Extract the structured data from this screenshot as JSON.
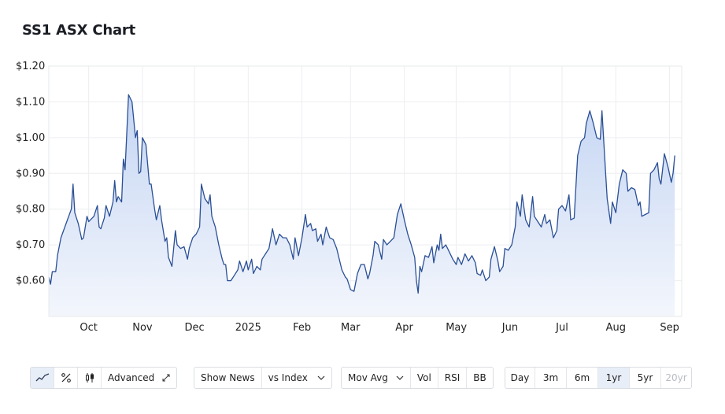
{
  "title": "SS1 ASX Chart",
  "chart_data": {
    "type": "area",
    "title": "SS1 ASX Chart",
    "ylim": [
      0.5,
      1.2
    ],
    "y_ticks": [
      {
        "value": 0.6,
        "label": "$0.60"
      },
      {
        "value": 0.7,
        "label": "$0.70"
      },
      {
        "value": 0.8,
        "label": "$0.80"
      },
      {
        "value": 0.9,
        "label": "$0.90"
      },
      {
        "value": 1.0,
        "label": "$1.00"
      },
      {
        "value": 1.1,
        "label": "$1.10"
      },
      {
        "value": 1.2,
        "label": "$1.20"
      }
    ],
    "x_ticks": [
      {
        "label": "Oct",
        "date": "2024-10-01"
      },
      {
        "label": "Nov",
        "date": "2024-11-01"
      },
      {
        "label": "Dec",
        "date": "2024-12-01"
      },
      {
        "label": "2025",
        "date": "2025-01-01"
      },
      {
        "label": "Feb",
        "date": "2025-02-01"
      },
      {
        "label": "Mar",
        "date": "2025-03-01"
      },
      {
        "label": "Apr",
        "date": "2025-04-01"
      },
      {
        "label": "May",
        "date": "2025-05-01"
      },
      {
        "label": "Jun",
        "date": "2025-06-01"
      },
      {
        "label": "Jul",
        "date": "2025-07-01"
      },
      {
        "label": "Aug",
        "date": "2025-08-01"
      },
      {
        "label": "Sep",
        "date": "2025-09-01"
      }
    ],
    "xlim": [
      "2024-09-08",
      "2025-09-08"
    ],
    "grid": true,
    "line_color": "#2a4f96",
    "fill_top_color": "#c4d5f3",
    "fill_bottom_color": "#f3f6fc",
    "series": [
      {
        "points": [
          [
            "2024-09-08",
            0.61
          ],
          [
            "2024-09-09",
            0.59
          ],
          [
            "2024-09-10",
            0.625
          ],
          [
            "2024-09-12",
            0.625
          ],
          [
            "2024-09-13",
            0.67
          ],
          [
            "2024-09-15",
            0.72
          ],
          [
            "2024-09-18",
            0.76
          ],
          [
            "2024-09-21",
            0.8
          ],
          [
            "2024-09-22",
            0.87
          ],
          [
            "2024-09-23",
            0.79
          ],
          [
            "2024-09-25",
            0.76
          ],
          [
            "2024-09-27",
            0.715
          ],
          [
            "2024-09-28",
            0.72
          ],
          [
            "2024-09-30",
            0.78
          ],
          [
            "2024-10-01",
            0.765
          ],
          [
            "2024-10-03",
            0.775
          ],
          [
            "2024-10-04",
            0.78
          ],
          [
            "2024-10-06",
            0.81
          ],
          [
            "2024-10-07",
            0.75
          ],
          [
            "2024-10-08",
            0.745
          ],
          [
            "2024-10-10",
            0.775
          ],
          [
            "2024-10-11",
            0.81
          ],
          [
            "2024-10-13",
            0.78
          ],
          [
            "2024-10-15",
            0.82
          ],
          [
            "2024-10-16",
            0.88
          ],
          [
            "2024-10-17",
            0.82
          ],
          [
            "2024-10-18",
            0.835
          ],
          [
            "2024-10-20",
            0.82
          ],
          [
            "2024-10-21",
            0.94
          ],
          [
            "2024-10-22",
            0.91
          ],
          [
            "2024-10-24",
            1.12
          ],
          [
            "2024-10-25",
            1.11
          ],
          [
            "2024-10-26",
            1.1
          ],
          [
            "2024-10-28",
            1.0
          ],
          [
            "2024-10-29",
            1.02
          ],
          [
            "2024-10-30",
            0.9
          ],
          [
            "2024-10-31",
            0.905
          ],
          [
            "2024-11-01",
            1.0
          ],
          [
            "2024-11-03",
            0.98
          ],
          [
            "2024-11-05",
            0.87
          ],
          [
            "2024-11-06",
            0.87
          ],
          [
            "2024-11-08",
            0.8
          ],
          [
            "2024-11-09",
            0.77
          ],
          [
            "2024-11-11",
            0.81
          ],
          [
            "2024-11-12",
            0.77
          ],
          [
            "2024-11-14",
            0.71
          ],
          [
            "2024-11-15",
            0.72
          ],
          [
            "2024-11-16",
            0.665
          ],
          [
            "2024-11-18",
            0.64
          ],
          [
            "2024-11-20",
            0.74
          ],
          [
            "2024-11-21",
            0.7
          ],
          [
            "2024-11-23",
            0.69
          ],
          [
            "2024-11-25",
            0.695
          ],
          [
            "2024-11-27",
            0.66
          ],
          [
            "2024-11-28",
            0.69
          ],
          [
            "2024-11-30",
            0.72
          ],
          [
            "2024-12-02",
            0.73
          ],
          [
            "2024-12-04",
            0.75
          ],
          [
            "2024-12-05",
            0.87
          ],
          [
            "2024-12-07",
            0.83
          ],
          [
            "2024-12-09",
            0.815
          ],
          [
            "2024-12-10",
            0.84
          ],
          [
            "2024-12-11",
            0.78
          ],
          [
            "2024-12-13",
            0.75
          ],
          [
            "2024-12-15",
            0.7
          ],
          [
            "2024-12-17",
            0.66
          ],
          [
            "2024-12-18",
            0.645
          ],
          [
            "2024-12-19",
            0.645
          ],
          [
            "2024-12-20",
            0.6
          ],
          [
            "2024-12-22",
            0.6
          ],
          [
            "2024-12-24",
            0.615
          ],
          [
            "2024-12-26",
            0.63
          ],
          [
            "2024-12-27",
            0.655
          ],
          [
            "2024-12-29",
            0.625
          ],
          [
            "2024-12-31",
            0.655
          ],
          [
            "2025-01-01",
            0.63
          ],
          [
            "2025-01-03",
            0.66
          ],
          [
            "2025-01-04",
            0.62
          ],
          [
            "2025-01-06",
            0.64
          ],
          [
            "2025-01-08",
            0.63
          ],
          [
            "2025-01-09",
            0.66
          ],
          [
            "2025-01-11",
            0.675
          ],
          [
            "2025-01-13",
            0.69
          ],
          [
            "2025-01-15",
            0.745
          ],
          [
            "2025-01-17",
            0.7
          ],
          [
            "2025-01-19",
            0.73
          ],
          [
            "2025-01-21",
            0.72
          ],
          [
            "2025-01-23",
            0.72
          ],
          [
            "2025-01-25",
            0.7
          ],
          [
            "2025-01-27",
            0.66
          ],
          [
            "2025-01-28",
            0.72
          ],
          [
            "2025-01-30",
            0.67
          ],
          [
            "2025-02-01",
            0.72
          ],
          [
            "2025-02-03",
            0.785
          ],
          [
            "2025-02-04",
            0.75
          ],
          [
            "2025-02-06",
            0.76
          ],
          [
            "2025-02-07",
            0.74
          ],
          [
            "2025-02-09",
            0.745
          ],
          [
            "2025-02-10",
            0.71
          ],
          [
            "2025-02-12",
            0.73
          ],
          [
            "2025-02-13",
            0.7
          ],
          [
            "2025-02-15",
            0.75
          ],
          [
            "2025-02-17",
            0.72
          ],
          [
            "2025-02-19",
            0.715
          ],
          [
            "2025-02-21",
            0.69
          ],
          [
            "2025-02-23",
            0.65
          ],
          [
            "2025-02-24",
            0.63
          ],
          [
            "2025-02-26",
            0.61
          ],
          [
            "2025-02-27",
            0.605
          ],
          [
            "2025-03-01",
            0.575
          ],
          [
            "2025-03-03",
            0.57
          ],
          [
            "2025-03-05",
            0.62
          ],
          [
            "2025-03-07",
            0.645
          ],
          [
            "2025-03-09",
            0.645
          ],
          [
            "2025-03-11",
            0.605
          ],
          [
            "2025-03-12",
            0.62
          ],
          [
            "2025-03-14",
            0.67
          ],
          [
            "2025-03-15",
            0.71
          ],
          [
            "2025-03-17",
            0.7
          ],
          [
            "2025-03-19",
            0.66
          ],
          [
            "2025-03-20",
            0.715
          ],
          [
            "2025-03-22",
            0.7
          ],
          [
            "2025-03-24",
            0.71
          ],
          [
            "2025-03-26",
            0.72
          ],
          [
            "2025-03-28",
            0.785
          ],
          [
            "2025-03-30",
            0.815
          ],
          [
            "2025-04-01",
            0.77
          ],
          [
            "2025-04-03",
            0.73
          ],
          [
            "2025-04-05",
            0.7
          ],
          [
            "2025-04-07",
            0.665
          ],
          [
            "2025-04-08",
            0.6
          ],
          [
            "2025-04-09",
            0.565
          ],
          [
            "2025-04-10",
            0.64
          ],
          [
            "2025-04-11",
            0.625
          ],
          [
            "2025-04-13",
            0.67
          ],
          [
            "2025-04-15",
            0.665
          ],
          [
            "2025-04-17",
            0.695
          ],
          [
            "2025-04-18",
            0.65
          ],
          [
            "2025-04-20",
            0.7
          ],
          [
            "2025-04-21",
            0.685
          ],
          [
            "2025-04-22",
            0.73
          ],
          [
            "2025-04-23",
            0.69
          ],
          [
            "2025-04-25",
            0.7
          ],
          [
            "2025-04-27",
            0.68
          ],
          [
            "2025-04-29",
            0.66
          ],
          [
            "2025-05-01",
            0.645
          ],
          [
            "2025-05-02",
            0.665
          ],
          [
            "2025-05-04",
            0.645
          ],
          [
            "2025-05-06",
            0.675
          ],
          [
            "2025-05-08",
            0.655
          ],
          [
            "2025-05-10",
            0.67
          ],
          [
            "2025-05-12",
            0.65
          ],
          [
            "2025-05-13",
            0.62
          ],
          [
            "2025-05-15",
            0.615
          ],
          [
            "2025-05-16",
            0.63
          ],
          [
            "2025-05-18",
            0.6
          ],
          [
            "2025-05-20",
            0.61
          ],
          [
            "2025-05-21",
            0.66
          ],
          [
            "2025-05-23",
            0.695
          ],
          [
            "2025-05-25",
            0.655
          ],
          [
            "2025-05-26",
            0.625
          ],
          [
            "2025-05-28",
            0.64
          ],
          [
            "2025-05-29",
            0.69
          ],
          [
            "2025-05-31",
            0.685
          ],
          [
            "2025-06-02",
            0.7
          ],
          [
            "2025-06-04",
            0.75
          ],
          [
            "2025-06-05",
            0.82
          ],
          [
            "2025-06-07",
            0.78
          ],
          [
            "2025-06-08",
            0.84
          ],
          [
            "2025-06-10",
            0.77
          ],
          [
            "2025-06-12",
            0.75
          ],
          [
            "2025-06-14",
            0.835
          ],
          [
            "2025-06-15",
            0.78
          ],
          [
            "2025-06-17",
            0.765
          ],
          [
            "2025-06-19",
            0.75
          ],
          [
            "2025-06-21",
            0.785
          ],
          [
            "2025-06-22",
            0.76
          ],
          [
            "2025-06-24",
            0.77
          ],
          [
            "2025-06-26",
            0.72
          ],
          [
            "2025-06-28",
            0.74
          ],
          [
            "2025-06-29",
            0.8
          ],
          [
            "2025-07-01",
            0.81
          ],
          [
            "2025-07-03",
            0.795
          ],
          [
            "2025-07-05",
            0.84
          ],
          [
            "2025-07-06",
            0.77
          ],
          [
            "2025-07-08",
            0.775
          ],
          [
            "2025-07-10",
            0.95
          ],
          [
            "2025-07-12",
            0.99
          ],
          [
            "2025-07-14",
            1.0
          ],
          [
            "2025-07-15",
            1.04
          ],
          [
            "2025-07-17",
            1.075
          ],
          [
            "2025-07-19",
            1.04
          ],
          [
            "2025-07-21",
            1.0
          ],
          [
            "2025-07-23",
            0.995
          ],
          [
            "2025-07-24",
            1.075
          ],
          [
            "2025-07-26",
            0.91
          ],
          [
            "2025-07-27",
            0.83
          ],
          [
            "2025-07-29",
            0.76
          ],
          [
            "2025-07-30",
            0.82
          ],
          [
            "2025-08-01",
            0.79
          ],
          [
            "2025-08-03",
            0.87
          ],
          [
            "2025-08-05",
            0.91
          ],
          [
            "2025-08-07",
            0.9
          ],
          [
            "2025-08-08",
            0.85
          ],
          [
            "2025-08-10",
            0.86
          ],
          [
            "2025-08-12",
            0.855
          ],
          [
            "2025-08-14",
            0.81
          ],
          [
            "2025-08-15",
            0.82
          ],
          [
            "2025-08-16",
            0.78
          ],
          [
            "2025-08-18",
            0.785
          ],
          [
            "2025-08-20",
            0.79
          ],
          [
            "2025-08-21",
            0.9
          ],
          [
            "2025-08-23",
            0.91
          ],
          [
            "2025-08-25",
            0.93
          ],
          [
            "2025-08-26",
            0.885
          ],
          [
            "2025-08-27",
            0.87
          ],
          [
            "2025-08-29",
            0.955
          ],
          [
            "2025-08-31",
            0.92
          ],
          [
            "2025-09-02",
            0.875
          ],
          [
            "2025-09-03",
            0.9
          ],
          [
            "2025-09-04",
            0.95
          ]
        ]
      }
    ]
  },
  "toolbar": {
    "chart_type": {
      "line_icon": "line-chart-icon",
      "percent_icon": "percent-icon",
      "candle_icon": "candlestick-icon",
      "advanced_label": "Advanced",
      "expand_icon": "expand-arrow-icon"
    },
    "news": {
      "show_news_label": "Show News",
      "vs_index_label": "vs Index"
    },
    "indicators": {
      "mov_avg_label": "Mov Avg",
      "vol_label": "Vol",
      "rsi_label": "RSI",
      "bb_label": "BB"
    },
    "ranges": [
      {
        "label": "Day",
        "state": "normal"
      },
      {
        "label": "3m",
        "state": "normal"
      },
      {
        "label": "6m",
        "state": "normal"
      },
      {
        "label": "1yr",
        "state": "active"
      },
      {
        "label": "5yr",
        "state": "normal"
      },
      {
        "label": "20yr",
        "state": "disabled"
      }
    ]
  }
}
